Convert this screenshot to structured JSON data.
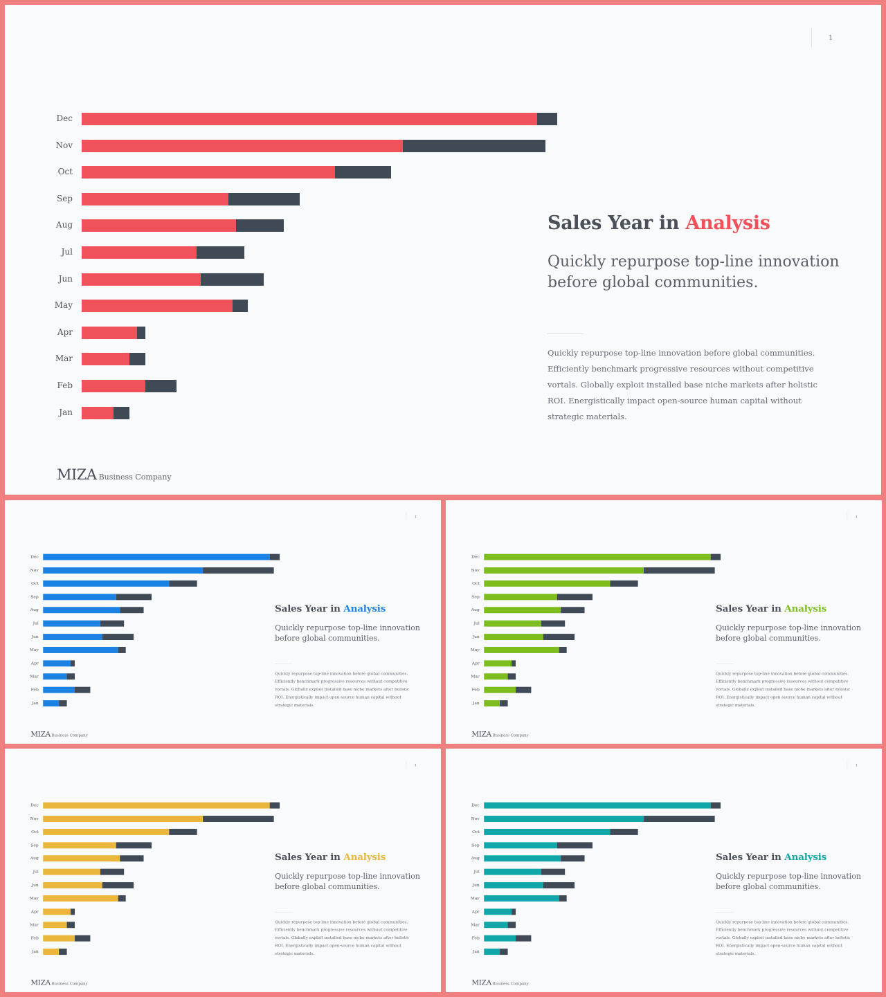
{
  "slides": [
    {
      "id": "red",
      "accent": "#f0515a",
      "page": "1"
    },
    {
      "id": "blue",
      "accent": "#1b82e3",
      "page": "1"
    },
    {
      "id": "green",
      "accent": "#7dbd1e",
      "page": "1"
    },
    {
      "id": "yellow",
      "accent": "#eab63b",
      "page": "1"
    },
    {
      "id": "teal",
      "accent": "#11a7a8",
      "page": "1"
    }
  ],
  "content": {
    "title_prefix": "Sales Year in ",
    "title_accent": "Analysis",
    "subtitle": "Quickly repurpose top-line innovation before global communities.",
    "body": "Quickly repurpose top-line innovation before global communities. Efficiently benchmark progressive resources without competitive vortals. Globally exploit installed base niche markets after holistic ROI. Energistically impact open-source human capital without strategic materials.",
    "logo_main": "MIZA",
    "logo_sub": "Business Company"
  },
  "chart_data": {
    "type": "bar",
    "orientation": "horizontal",
    "stacked": true,
    "categories": [
      "Dec",
      "Nov",
      "Oct",
      "Sep",
      "Aug",
      "Jul",
      "Jun",
      "May",
      "Apr",
      "Mar",
      "Feb",
      "Jan"
    ],
    "series": [
      {
        "values": [
          57.5,
          40.5,
          32,
          18.5,
          19.5,
          14.5,
          15,
          19,
          7,
          6,
          8,
          4
        ]
      },
      {
        "values": [
          2.5,
          18,
          7,
          9,
          6,
          6,
          8,
          2,
          1,
          2,
          4,
          2
        ]
      }
    ],
    "xlim": [
      0,
      60
    ],
    "grid": false,
    "second_series_color": "#404a57"
  }
}
